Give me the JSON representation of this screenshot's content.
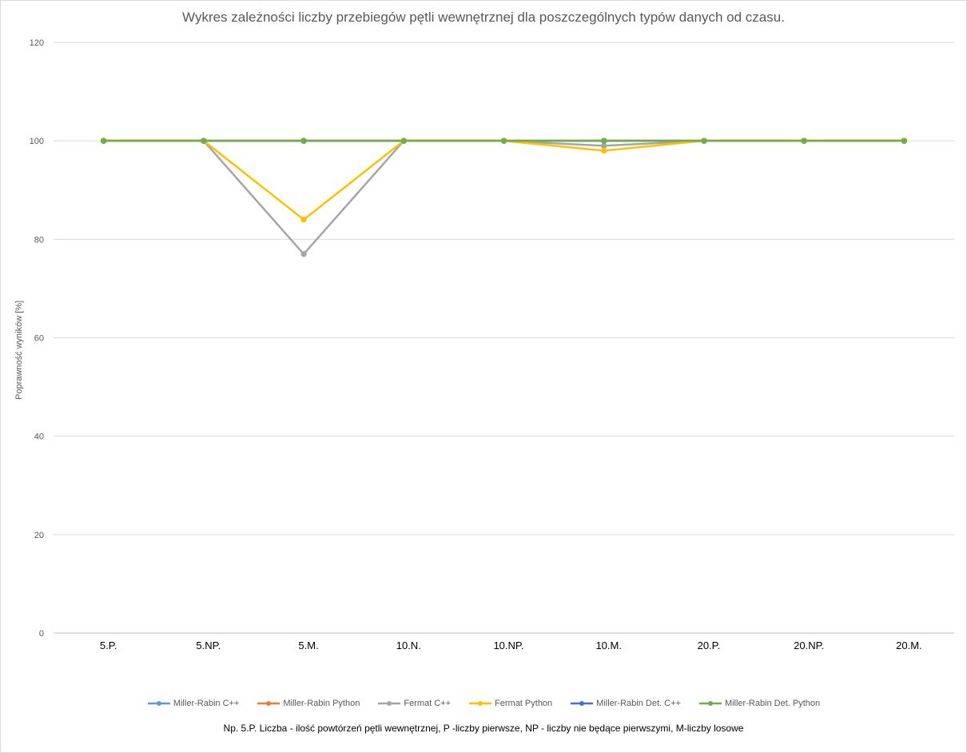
{
  "chart_data": {
    "type": "line",
    "title": "Wykres zależności liczby przebiegów pętli wewnętrznej dla poszczególnych typów danych od czasu.",
    "xlabel": "",
    "ylabel": "Poprawność wyników [%]",
    "ylim": [
      0,
      120
    ],
    "yticks": [
      "0",
      "20",
      "40",
      "60",
      "80",
      "100",
      "120"
    ],
    "categories": [
      "5.P.",
      "5.NP.",
      "5.M.",
      "10.N.",
      "10.NP.",
      "10.M.",
      "20.P.",
      "20.NP.",
      "20.M."
    ],
    "grid": true,
    "legend_position": "bottom",
    "series": [
      {
        "name": "Miller-Rabin C++",
        "color": "#5b9bd5",
        "values": [
          100,
          100,
          100,
          100,
          100,
          100,
          100,
          100,
          100
        ]
      },
      {
        "name": "Miller-Rabin Python",
        "color": "#ed7d31",
        "values": [
          100,
          100,
          100,
          100,
          100,
          100,
          100,
          100,
          100
        ]
      },
      {
        "name": "Fermat C++",
        "color": "#a5a5a5",
        "values": [
          100,
          100,
          77,
          100,
          100,
          99,
          100,
          100,
          100
        ]
      },
      {
        "name": "Fermat Python",
        "color": "#ffc000",
        "values": [
          100,
          100,
          84,
          100,
          100,
          98,
          100,
          100,
          100
        ]
      },
      {
        "name": "Miller-Rabin Det. C++",
        "color": "#4472c4",
        "values": [
          100,
          100,
          100,
          100,
          100,
          100,
          100,
          100,
          100
        ]
      },
      {
        "name": "Miller-Rabin Det. Python",
        "color": "#70ad47",
        "values": [
          100,
          100,
          100,
          100,
          100,
          100,
          100,
          100,
          100
        ]
      }
    ],
    "annotation": "Np. 5.P. Liczba - ilość powtórzeń pętli wewnętrznej, P -liczby pierwsze, NP - liczby nie będące pierwszymi, M-liczby losowe"
  }
}
